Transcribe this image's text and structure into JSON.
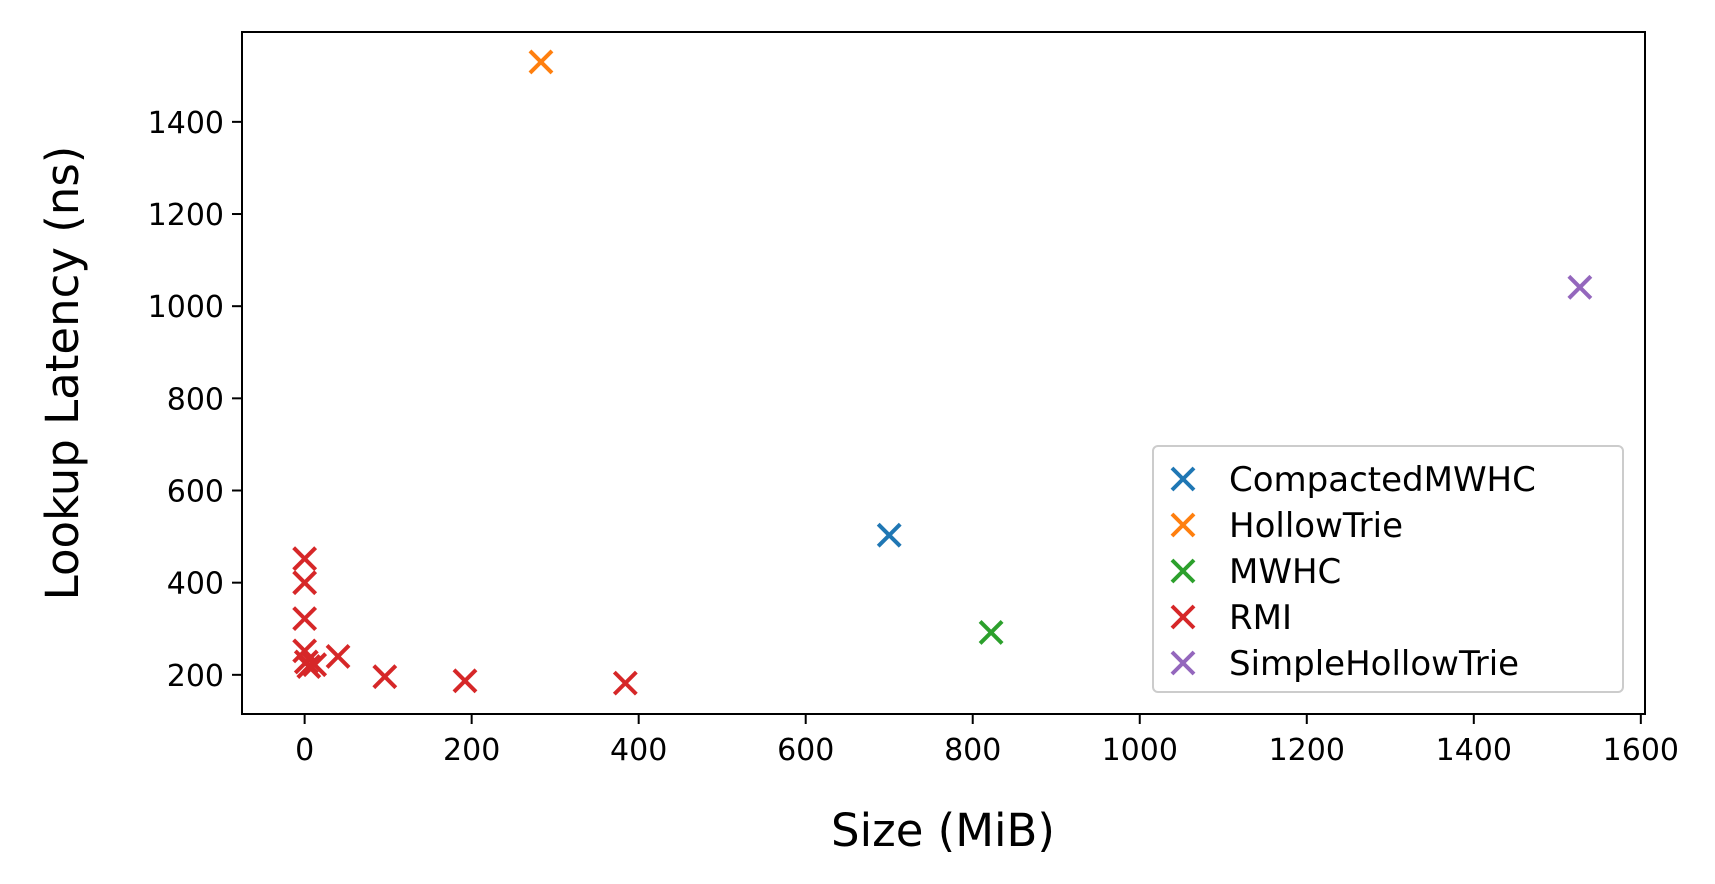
{
  "chart_data": {
    "type": "scatter",
    "title": "",
    "xlabel": "Size (MiB)",
    "ylabel": "Lookup Latency (ns)",
    "xlim": [
      -75,
      1605
    ],
    "ylim": [
      115,
      1595
    ],
    "xticks": [
      0,
      200,
      400,
      600,
      800,
      1000,
      1200,
      1400,
      1600
    ],
    "yticks": [
      200,
      400,
      600,
      800,
      1000,
      1200,
      1400
    ],
    "grid": false,
    "legend": "lower right",
    "marker": "x",
    "series": [
      {
        "name": "CompactedMWHC",
        "color": "#1f77b4",
        "points": [
          {
            "x": 700,
            "y": 503
          }
        ]
      },
      {
        "name": "HollowTrie",
        "color": "#ff7f0e",
        "points": [
          {
            "x": 283,
            "y": 1530
          }
        ]
      },
      {
        "name": "MWHC",
        "color": "#2ca02c",
        "points": [
          {
            "x": 822,
            "y": 292
          }
        ]
      },
      {
        "name": "RMI",
        "color": "#d62728",
        "points": [
          {
            "x": 0,
            "y": 452
          },
          {
            "x": 0,
            "y": 400
          },
          {
            "x": 0,
            "y": 322
          },
          {
            "x": 0,
            "y": 252
          },
          {
            "x": 2,
            "y": 228
          },
          {
            "x": 5,
            "y": 218
          },
          {
            "x": 12,
            "y": 222
          },
          {
            "x": 40,
            "y": 240
          },
          {
            "x": 96,
            "y": 196
          },
          {
            "x": 192,
            "y": 187
          },
          {
            "x": 384,
            "y": 182
          }
        ]
      },
      {
        "name": "SimpleHollowTrie",
        "color": "#9467bd",
        "points": [
          {
            "x": 1527,
            "y": 1041
          }
        ]
      }
    ]
  }
}
